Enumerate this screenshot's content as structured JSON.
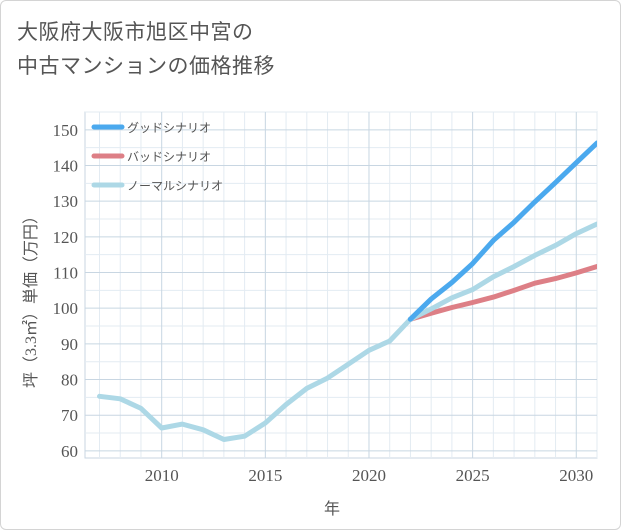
{
  "chart_data": {
    "type": "line",
    "title_lines": [
      "大阪府大阪市旭区中宮の",
      "中古マンションの価格推移"
    ],
    "xlabel": "年",
    "ylabel": "坪（3.3㎡）単価（万円）",
    "xlim": [
      2006.3,
      2031
    ],
    "ylim": [
      58,
      155
    ],
    "x_ticks": [
      2010,
      2015,
      2020,
      2025,
      2030
    ],
    "y_ticks": [
      60,
      70,
      80,
      90,
      100,
      110,
      120,
      130,
      140,
      150
    ],
    "grid": true,
    "legend_position": "top-left",
    "history": {
      "color": "#add8e6",
      "x": [
        2007,
        2008,
        2009,
        2010,
        2011,
        2012,
        2013,
        2014,
        2015,
        2016,
        2017,
        2018,
        2019,
        2020,
        2021,
        2022
      ],
      "y": [
        75.3,
        74.6,
        71.9,
        66.4,
        67.5,
        65.9,
        63.2,
        64.1,
        67.8,
        73.0,
        77.5,
        80.4,
        84.3,
        88.2,
        90.8,
        96.9
      ]
    },
    "series": [
      {
        "name": "グッドシナリオ",
        "color": "#4ba9ee",
        "x": [
          2022,
          2023,
          2024,
          2025,
          2026,
          2027,
          2028,
          2029,
          2030,
          2031
        ],
        "y": [
          96.9,
          102.6,
          107.2,
          112.5,
          119.0,
          124.1,
          129.8,
          135.2,
          140.8,
          146.3
        ]
      },
      {
        "name": "バッドシナリオ",
        "color": "#dd7f86",
        "x": [
          2022,
          2023,
          2024,
          2025,
          2026,
          2027,
          2028,
          2029,
          2030,
          2031
        ],
        "y": [
          96.9,
          98.6,
          100.2,
          101.6,
          103.1,
          105.0,
          107.0,
          108.3,
          109.9,
          111.7
        ]
      },
      {
        "name": "ノーマルシナリオ",
        "color": "#add8e6",
        "x": [
          2022,
          2023,
          2024,
          2025,
          2026,
          2027,
          2028,
          2029,
          2030,
          2031
        ],
        "y": [
          96.9,
          99.8,
          102.9,
          105.2,
          108.8,
          111.7,
          114.8,
          117.6,
          120.9,
          123.6
        ]
      }
    ]
  }
}
